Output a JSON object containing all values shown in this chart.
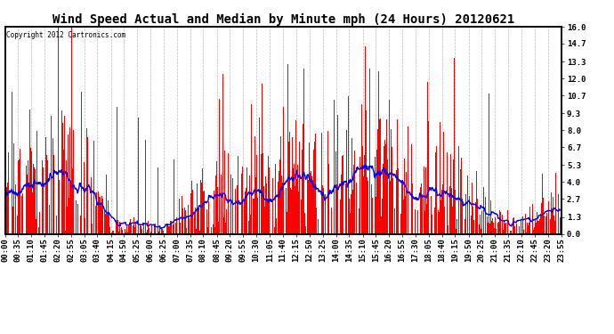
{
  "title": "Wind Speed Actual and Median by Minute mph (24 Hours) 20120621",
  "copyright": "Copyright 2012 Cartronics.com",
  "ylabel_right_ticks": [
    0.0,
    1.3,
    2.7,
    4.0,
    5.3,
    6.7,
    8.0,
    9.3,
    10.7,
    12.0,
    13.3,
    14.7,
    16.0
  ],
  "ylim": [
    0.0,
    16.0
  ],
  "bar_color": "#ff0000",
  "line_color": "#0000ff",
  "background_color": "#ffffff",
  "grid_color": "#bbbbbb",
  "title_fontsize": 10,
  "tick_fontsize": 6.5,
  "xtick_labels": [
    "00:00",
    "00:35",
    "01:10",
    "01:45",
    "02:20",
    "02:55",
    "03:05",
    "03:40",
    "04:15",
    "04:50",
    "05:25",
    "06:00",
    "06:25",
    "07:00",
    "07:35",
    "08:10",
    "08:45",
    "09:20",
    "09:55",
    "10:30",
    "11:05",
    "11:40",
    "12:15",
    "12:50",
    "13:25",
    "14:00",
    "14:35",
    "15:10",
    "15:45",
    "16:20",
    "16:55",
    "17:30",
    "18:05",
    "18:40",
    "19:15",
    "19:50",
    "20:25",
    "21:00",
    "21:35",
    "22:10",
    "22:45",
    "23:20",
    "23:55"
  ],
  "seed": 1234
}
